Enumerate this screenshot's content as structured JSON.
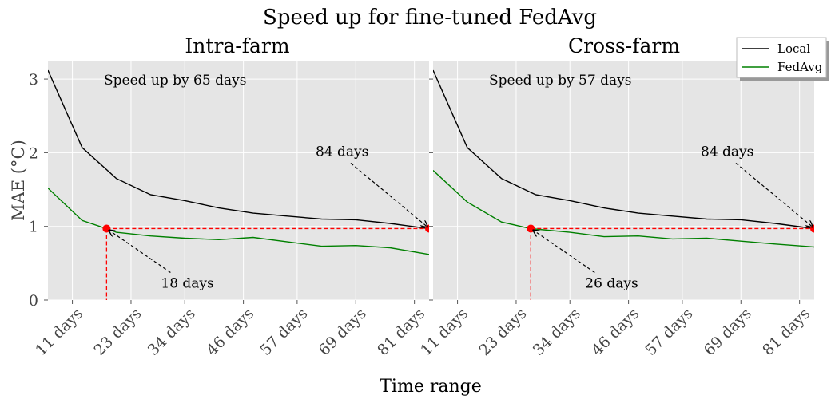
{
  "figure": {
    "suptitle": "Speed up for fine-tuned FedAvg",
    "ylabel": "MAE (°C)",
    "xlabel": "Time range"
  },
  "colors": {
    "local": "#000000",
    "fedavg": "#008000",
    "marker": "#ff0000"
  },
  "legend": {
    "placement": "top-right",
    "items": [
      {
        "label": "Local",
        "color": "#000000"
      },
      {
        "label": "FedAvg",
        "color": "#008000"
      }
    ]
  },
  "chart_data": [
    {
      "type": "line",
      "title": "Intra-farm",
      "xlim": [
        6,
        84
      ],
      "ylim": [
        0,
        3.25
      ],
      "xticks": [
        11,
        23,
        34,
        46,
        57,
        69,
        81
      ],
      "xtick_labels": [
        "11 days",
        "23 days",
        "34 days",
        "46 days",
        "57 days",
        "69 days",
        "81 days"
      ],
      "yticks": [
        0,
        1,
        2,
        3
      ],
      "ytick_labels": [
        "0",
        "1",
        "2",
        "3"
      ],
      "grid": true,
      "series": [
        {
          "name": "Local",
          "x": [
            6,
            13,
            20,
            27,
            34,
            41,
            48,
            55,
            62,
            69,
            76,
            84
          ],
          "y": [
            3.12,
            2.07,
            1.65,
            1.43,
            1.35,
            1.25,
            1.18,
            1.14,
            1.1,
            1.09,
            1.04,
            0.97
          ]
        },
        {
          "name": "FedAvg",
          "x": [
            6,
            13,
            18,
            20,
            27,
            34,
            41,
            48,
            55,
            62,
            69,
            76,
            84
          ],
          "y": [
            1.52,
            1.08,
            0.97,
            0.92,
            0.87,
            0.84,
            0.82,
            0.85,
            0.79,
            0.73,
            0.74,
            0.71,
            0.62
          ]
        }
      ],
      "annotations": {
        "speedup_text": "Speed up by 65 days",
        "start_label": "18 days",
        "end_label": "84 days",
        "start_x": 18,
        "end_x": 84,
        "level": 0.97
      }
    },
    {
      "type": "line",
      "title": "Cross-farm",
      "xlim": [
        6,
        84
      ],
      "ylim": [
        0,
        3.25
      ],
      "xticks": [
        11,
        23,
        34,
        46,
        57,
        69,
        81
      ],
      "xtick_labels": [
        "11 days",
        "23 days",
        "34 days",
        "46 days",
        "57 days",
        "69 days",
        "81 days"
      ],
      "yticks": [
        0,
        1,
        2,
        3
      ],
      "ytick_labels": [
        "",
        "",
        "",
        ""
      ],
      "grid": true,
      "series": [
        {
          "name": "Local",
          "x": [
            6,
            13,
            20,
            27,
            34,
            41,
            48,
            55,
            62,
            69,
            76,
            84
          ],
          "y": [
            3.12,
            2.07,
            1.65,
            1.43,
            1.35,
            1.25,
            1.18,
            1.14,
            1.1,
            1.09,
            1.04,
            0.97
          ]
        },
        {
          "name": "FedAvg",
          "x": [
            6,
            13,
            20,
            26,
            34,
            41,
            48,
            55,
            62,
            69,
            76,
            84
          ],
          "y": [
            1.76,
            1.33,
            1.06,
            0.97,
            0.92,
            0.86,
            0.87,
            0.83,
            0.84,
            0.8,
            0.76,
            0.72
          ]
        }
      ],
      "annotations": {
        "speedup_text": "Speed up by 57 days",
        "start_label": "26 days",
        "end_label": "84 days",
        "start_x": 26,
        "end_x": 84,
        "level": 0.97
      }
    }
  ]
}
